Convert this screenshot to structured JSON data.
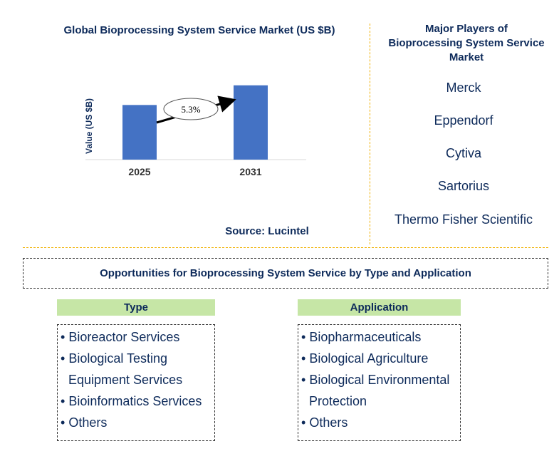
{
  "chart_data": {
    "type": "bar",
    "title": "Global Bioprocessing System Service Market (US $B)",
    "categories": [
      "2025",
      "2031"
    ],
    "values": [
      1.0,
      1.36
    ],
    "ylabel": "Value (US $B)",
    "xlabel": "",
    "ylim": [
      0,
      1.5
    ],
    "cagr_label": "5.3%",
    "bar_color": "#4472c4",
    "source": "Source: Lucintel"
  },
  "players": {
    "title": "Major Players of Bioprocessing System Service Market",
    "items": [
      "Merck",
      "Eppendorf",
      "Cytiva",
      "Sartorius",
      "Thermo Fisher Scientific"
    ]
  },
  "opportunities": {
    "title": "Opportunities for Bioprocessing System Service by Type and Application",
    "type": {
      "header": "Type",
      "items": [
        "Bioreactor Services",
        "Biological Testing Equipment Services",
        "Bioinformatics Services",
        "Others"
      ]
    },
    "application": {
      "header": "Application",
      "items": [
        "Biopharmaceuticals",
        "Biological Agriculture",
        "Biological Environmental Protection",
        "Others"
      ]
    }
  },
  "colors": {
    "header_bg": "#c6e6a6",
    "divider": "#f0b000",
    "text": "#0d2a5a"
  }
}
